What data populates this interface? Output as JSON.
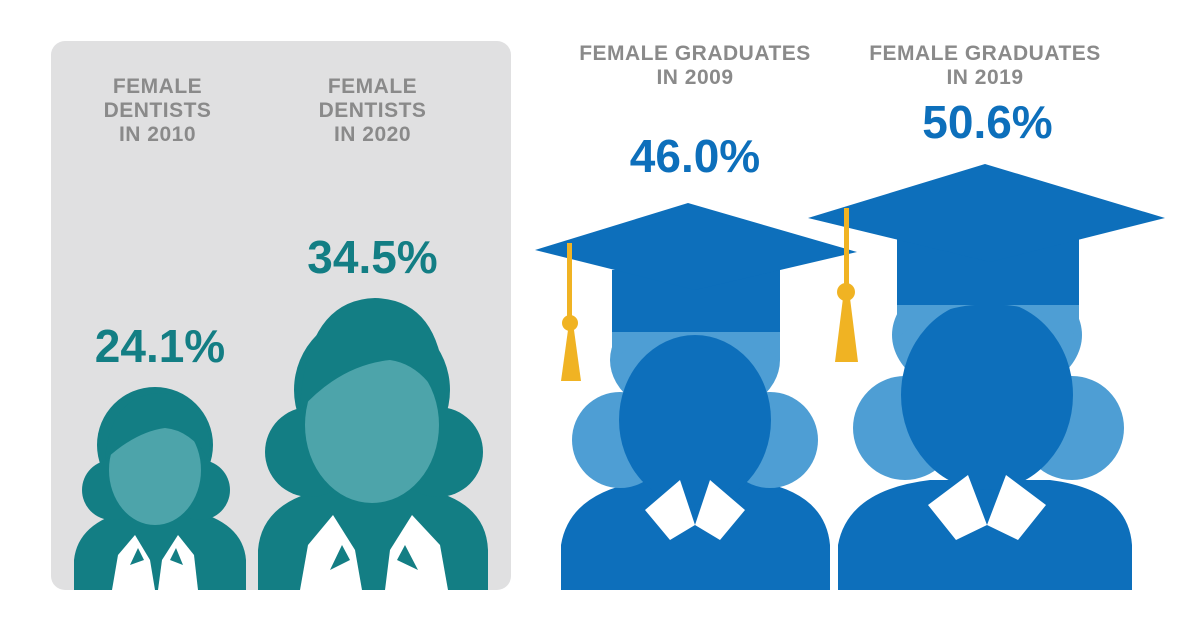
{
  "colors": {
    "panel": "#e0e0e1",
    "teal_dark": "#137e84",
    "teal_light": "#4da4aa",
    "blue_dark": "#0d6fbb",
    "blue_light": "#4e9ed4",
    "tassel": "#f0b323",
    "label_gray": "#8a8a8a",
    "collar": "#ffffff"
  },
  "icons": {
    "dentist": "female-dentist-icon",
    "graduate": "female-graduate-icon"
  },
  "chart_data": {
    "type": "pictograph",
    "categories": [
      "FEMALE\nDENTISTS\nIN 2010",
      "FEMALE\nDENTISTS\nIN 2020",
      "FEMALE GRADUATES\nIN 2009",
      "FEMALE GRADUATES\nIN 2019"
    ],
    "values": [
      24.1,
      34.5,
      46.0,
      50.6
    ],
    "value_labels": [
      "24.1%",
      "34.5%",
      "46.0%",
      "50.6%"
    ],
    "unit": "%"
  }
}
